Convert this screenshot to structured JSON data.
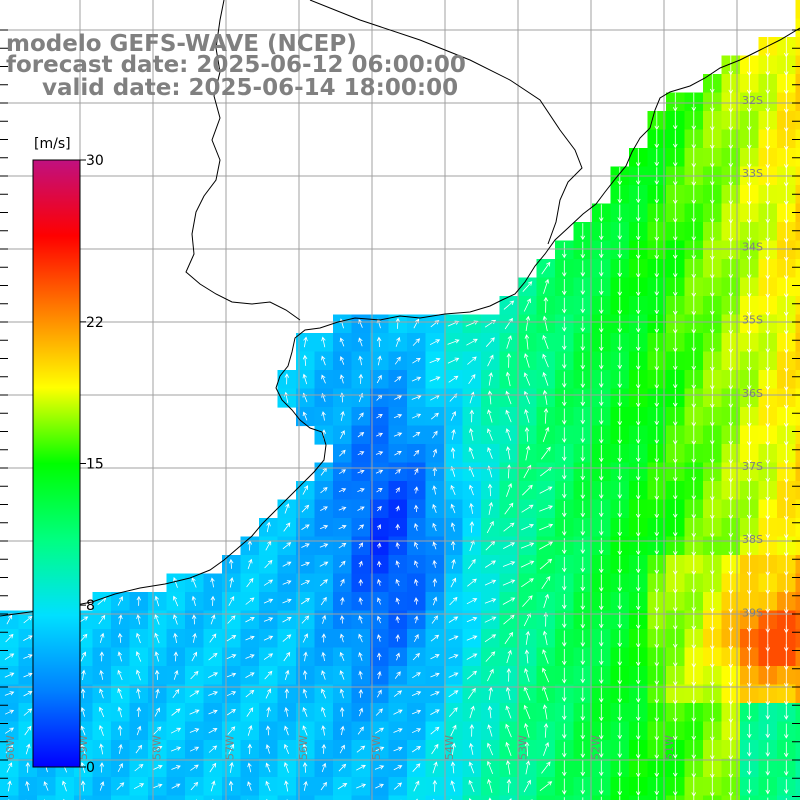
{
  "title": {
    "line1": "modelo GEFS-WAVE (NCEP)",
    "line2": "forecast date: 2025-06-12 06:00:00",
    "line3": "valid date: 2025-06-14 18:00:00"
  },
  "colorbar": {
    "unit_label": "[m/s]",
    "min": 0,
    "max": 30,
    "ticks": [
      {
        "value": 30,
        "label": "30"
      },
      {
        "value": 22,
        "label": "22"
      },
      {
        "value": 15,
        "label": "15"
      },
      {
        "value": 8,
        "label": "8"
      },
      {
        "value": 0,
        "label": "0"
      }
    ],
    "colors": [
      "#0000ff",
      "#0080ff",
      "#00e0ff",
      "#00ff80",
      "#00ff00",
      "#ffff00",
      "#ff8000",
      "#ff0000",
      "#c01080"
    ]
  },
  "map": {
    "lat_labels": [
      "32S",
      "33S",
      "34S",
      "35S",
      "36S",
      "37S",
      "38S",
      "39S"
    ],
    "lon_labels": [
      "60W",
      "59W",
      "58W",
      "57W",
      "56W",
      "55W",
      "54W",
      "53W",
      "52W",
      "51W"
    ],
    "grid_color": "#a0a0a0",
    "coast_color": "#000000"
  }
}
